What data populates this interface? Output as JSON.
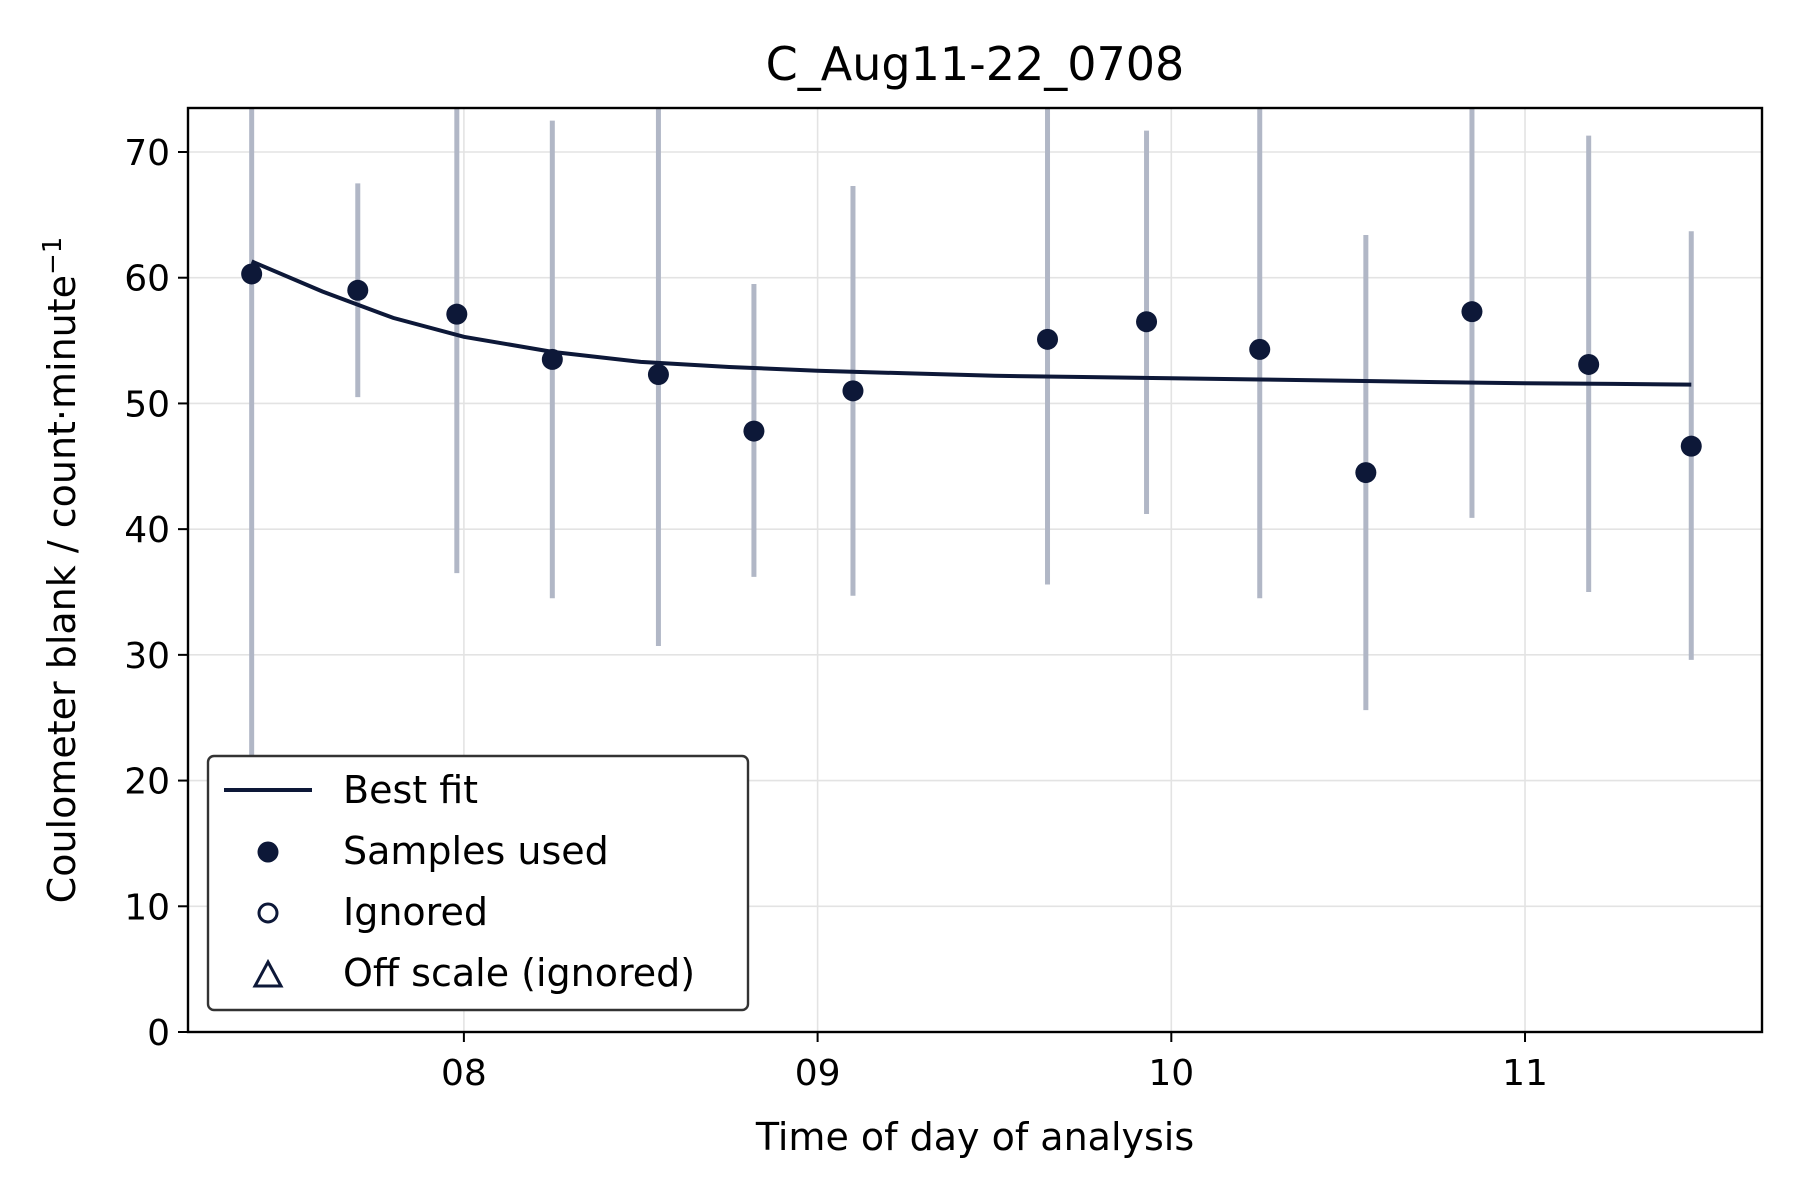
{
  "chart_data": {
    "type": "scatter",
    "title": "C_Aug11-22_0708",
    "xlabel": "Time of day of analysis",
    "ylabel_main": "Coulometer blank / count·minute",
    "ylabel_sup": "−1",
    "xlim_hours": [
      7.22,
      11.67
    ],
    "ylim": [
      0,
      73.5
    ],
    "x_ticks": [
      {
        "value": 8,
        "label": "08"
      },
      {
        "value": 9,
        "label": "09"
      },
      {
        "value": 10,
        "label": "10"
      },
      {
        "value": 11,
        "label": "11"
      }
    ],
    "y_ticks": [
      0,
      10,
      20,
      30,
      40,
      50,
      60,
      70
    ],
    "grid": true,
    "legend_position": "lower-left",
    "legend": [
      {
        "label": "Best fit",
        "marker": "line"
      },
      {
        "label": "Samples used",
        "marker": "filled-circle"
      },
      {
        "label": "Ignored",
        "marker": "open-circle"
      },
      {
        "label": "Off scale (ignored)",
        "marker": "open-triangle"
      }
    ],
    "series": [
      {
        "name": "Samples used",
        "points": [
          {
            "x": 7.4,
            "y": 60.3,
            "ylo": 18.5,
            "yhi": 73.5
          },
          {
            "x": 7.7,
            "y": 59.0,
            "ylo": 50.5,
            "yhi": 67.5
          },
          {
            "x": 7.98,
            "y": 57.1,
            "ylo": 36.5,
            "yhi": 73.5
          },
          {
            "x": 8.25,
            "y": 53.5,
            "ylo": 34.5,
            "yhi": 72.5
          },
          {
            "x": 8.55,
            "y": 52.3,
            "ylo": 30.7,
            "yhi": 73.5
          },
          {
            "x": 8.82,
            "y": 47.8,
            "ylo": 36.2,
            "yhi": 59.5
          },
          {
            "x": 9.1,
            "y": 51.0,
            "ylo": 34.7,
            "yhi": 67.3
          },
          {
            "x": 9.65,
            "y": 55.1,
            "ylo": 35.6,
            "yhi": 73.5
          },
          {
            "x": 9.93,
            "y": 56.5,
            "ylo": 41.2,
            "yhi": 71.7
          },
          {
            "x": 10.25,
            "y": 54.3,
            "ylo": 34.5,
            "yhi": 73.5
          },
          {
            "x": 10.55,
            "y": 44.5,
            "ylo": 25.6,
            "yhi": 63.4
          },
          {
            "x": 10.85,
            "y": 57.3,
            "ylo": 40.9,
            "yhi": 73.5
          },
          {
            "x": 11.18,
            "y": 53.1,
            "ylo": 35.0,
            "yhi": 71.3
          },
          {
            "x": 11.47,
            "y": 46.6,
            "ylo": 29.6,
            "yhi": 63.7
          }
        ]
      },
      {
        "name": "Ignored",
        "points": []
      },
      {
        "name": "Off scale (ignored)",
        "points": []
      }
    ],
    "best_fit": {
      "name": "Best fit",
      "x": [
        7.4,
        7.6,
        7.8,
        8.0,
        8.25,
        8.5,
        8.75,
        9.0,
        9.25,
        9.5,
        9.75,
        10.0,
        10.25,
        10.5,
        10.75,
        11.0,
        11.25,
        11.47
      ],
      "y": [
        61.3,
        58.9,
        56.8,
        55.3,
        54.1,
        53.3,
        52.9,
        52.6,
        52.4,
        52.2,
        52.1,
        52.0,
        51.9,
        51.8,
        51.7,
        51.6,
        51.55,
        51.5
      ]
    },
    "colors": {
      "marker": "#0d1838",
      "fit_line": "#0d1838",
      "error_bar": "#b1b7c6",
      "grid": "#e3e3e3"
    }
  }
}
